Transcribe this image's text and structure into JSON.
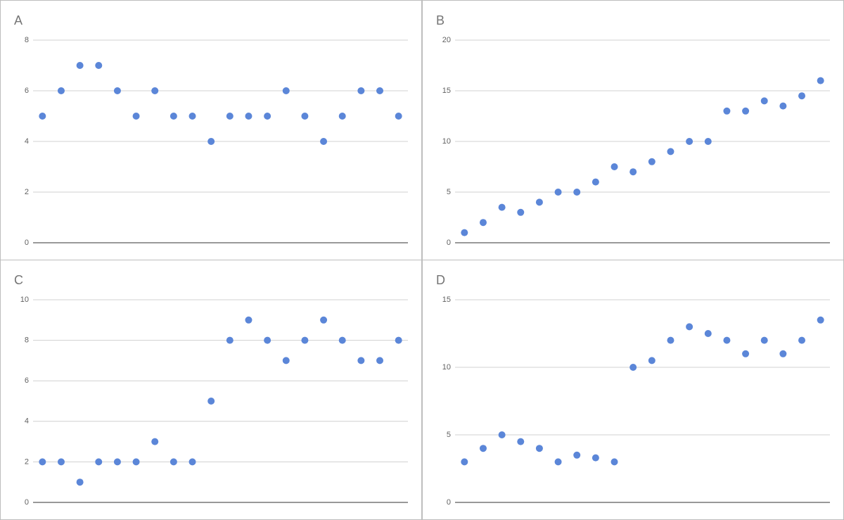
{
  "chart_data": [
    {
      "type": "scatter",
      "title": "A",
      "values": [
        5,
        6,
        7,
        7,
        6,
        5,
        6,
        5,
        5,
        4,
        5,
        5,
        5,
        6,
        5,
        4,
        5,
        6,
        6,
        5
      ],
      "color": "#5b86d8",
      "ylim": [
        0,
        8
      ],
      "yticks": [
        0,
        2,
        4,
        6,
        8
      ],
      "grid": true
    },
    {
      "type": "scatter",
      "title": "B",
      "values": [
        1,
        2,
        3.5,
        3,
        4,
        5,
        5,
        6,
        7.5,
        7,
        8,
        9,
        10,
        10,
        13,
        13,
        14,
        13.5,
        14.5,
        16
      ],
      "color": "#5b86d8",
      "ylim": [
        0,
        20
      ],
      "yticks": [
        0,
        5,
        10,
        15,
        20
      ],
      "grid": true
    },
    {
      "type": "scatter",
      "title": "C",
      "values": [
        2,
        2,
        1,
        2,
        2,
        2,
        3,
        2,
        2,
        5,
        8,
        9,
        8,
        7,
        8,
        9,
        8,
        7,
        7,
        8
      ],
      "color": "#5b86d8",
      "ylim": [
        0,
        10
      ],
      "yticks": [
        0,
        2,
        4,
        6,
        8,
        10
      ],
      "grid": true
    },
    {
      "type": "scatter",
      "title": "D",
      "values": [
        3,
        4,
        5,
        4.5,
        4,
        3,
        3.5,
        3.3,
        3,
        10,
        10.5,
        12,
        13,
        12.5,
        12,
        11,
        12,
        11,
        12,
        13.5
      ],
      "color": "#5b86d8",
      "ylim": [
        0,
        15
      ],
      "yticks": [
        0,
        5,
        10,
        15
      ],
      "grid": true
    }
  ]
}
